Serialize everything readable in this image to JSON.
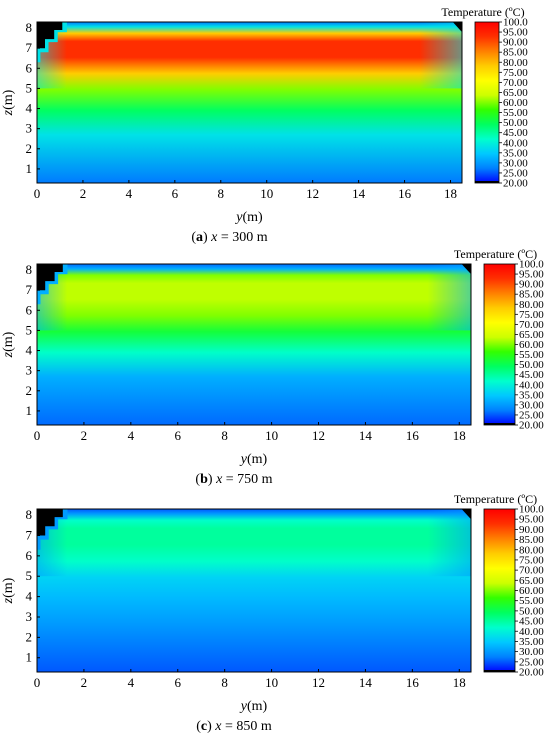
{
  "chart_data": [
    {
      "type": "heatmap",
      "caption": {
        "letter": "a",
        "var": "x",
        "rest": " = 300 m"
      },
      "xlabel": {
        "var": "y",
        "unit": "(m)"
      },
      "ylabel": {
        "var": "z",
        "unit": "(m)"
      },
      "xlim": [
        0,
        18.5
      ],
      "ylim": [
        0.3,
        8.3
      ],
      "x_ticks": [
        "0",
        "2",
        "4",
        "6",
        "8",
        "10",
        "12",
        "14",
        "16",
        "18"
      ],
      "y_ticks": [
        "1",
        "2",
        "3",
        "4",
        "5",
        "6",
        "7",
        "8"
      ],
      "colorbar": {
        "title": "Temperature (ºC)",
        "min": 20,
        "max": 100,
        "ticks": [
          "100.0",
          "95.00",
          "90.00",
          "85.00",
          "80.00",
          "75.00",
          "70.00",
          "65.00",
          "60.00",
          "55.00",
          "50.00",
          "45.00",
          "40.00",
          "35.00",
          "30.00",
          "25.00",
          "20.00"
        ]
      },
      "temperature_field": {
        "core_max": 93,
        "upper_zone": 78,
        "mid_zone": 60,
        "lower_zone": 38,
        "bottom": 27
      }
    },
    {
      "type": "heatmap",
      "caption": {
        "letter": "b",
        "var": "x",
        "rest": " = 750 m"
      },
      "xlabel": {
        "var": "y",
        "unit": "(m)"
      },
      "ylabel": {
        "var": "z",
        "unit": "(m)"
      },
      "xlim": [
        0,
        18.5
      ],
      "ylim": [
        0.3,
        8.3
      ],
      "x_ticks": [
        "0",
        "2",
        "4",
        "6",
        "8",
        "10",
        "12",
        "14",
        "16",
        "18"
      ],
      "y_ticks": [
        "1",
        "2",
        "3",
        "4",
        "5",
        "6",
        "7",
        "8"
      ],
      "colorbar": {
        "title": "Temperature (ºC)",
        "min": 20,
        "max": 100,
        "ticks": [
          "100.0",
          "95.00",
          "90.00",
          "85.00",
          "80.00",
          "75.00",
          "70.00",
          "65.00",
          "60.00",
          "55.00",
          "50.00",
          "45.00",
          "40.00",
          "35.00",
          "30.00",
          "25.00",
          "20.00"
        ]
      },
      "temperature_field": {
        "core_max": 63,
        "upper_zone": 60,
        "mid_zone": 52,
        "lower_zone": 32,
        "bottom": 26
      }
    },
    {
      "type": "heatmap",
      "caption": {
        "letter": "c",
        "var": "x",
        "rest": " = 850 m"
      },
      "xlabel": {
        "var": "y",
        "unit": "(m)"
      },
      "ylabel": {
        "var": "z",
        "unit": "(m)"
      },
      "xlim": [
        0,
        18.5
      ],
      "ylim": [
        0.3,
        8.3
      ],
      "x_ticks": [
        "0",
        "2",
        "4",
        "6",
        "8",
        "10",
        "12",
        "14",
        "16",
        "18"
      ],
      "y_ticks": [
        "1",
        "2",
        "3",
        "4",
        "5",
        "6",
        "7",
        "8"
      ],
      "colorbar": {
        "title": "Temperature (ºC)",
        "min": 20,
        "max": 100,
        "ticks": [
          "100.0",
          "95.00",
          "90.00",
          "85.00",
          "80.00",
          "75.00",
          "70.00",
          "65.00",
          "60.00",
          "55.00",
          "50.00",
          "45.00",
          "40.00",
          "35.00",
          "30.00",
          "25.00",
          "20.00"
        ]
      },
      "temperature_field": {
        "core_max": 45,
        "upper_zone": 42,
        "mid_zone": 36,
        "lower_zone": 30,
        "bottom": 25
      }
    }
  ],
  "colors": {
    "scale": [
      "#0000ff",
      "#0080ff",
      "#00c8ff",
      "#00ffcc",
      "#00ff60",
      "#33ff00",
      "#ccff00",
      "#ffff00",
      "#ffcc00",
      "#ff8000",
      "#ff3000",
      "#ff0000"
    ],
    "void": "#000000"
  }
}
